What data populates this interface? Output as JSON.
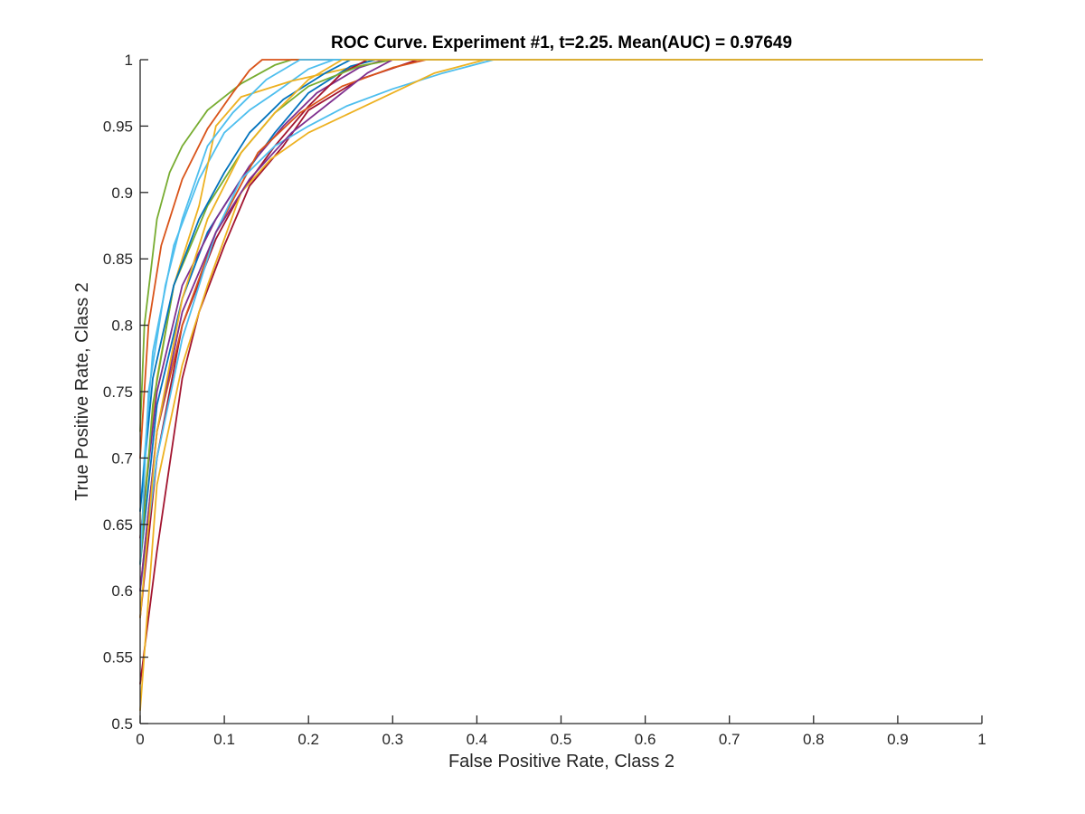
{
  "chart_data": {
    "type": "line",
    "title": "ROC Curve. Experiment #1, t=2.25. Mean(AUC) = 0.97649",
    "xlabel": "False Positive Rate, Class 2",
    "ylabel": "True Positive Rate, Class 2",
    "xlim": [
      0,
      1
    ],
    "ylim": [
      0.5,
      1
    ],
    "xticks": [
      0,
      0.1,
      0.2,
      0.3,
      0.4,
      0.5,
      0.6,
      0.7,
      0.8,
      0.9,
      1
    ],
    "xtick_labels": [
      "0",
      "0.1",
      "0.2",
      "0.3",
      "0.4",
      "0.5",
      "0.6",
      "0.7",
      "0.8",
      "0.9",
      "1"
    ],
    "yticks": [
      0.5,
      0.55,
      0.6,
      0.65,
      0.7,
      0.75,
      0.8,
      0.85,
      0.9,
      0.95,
      1
    ],
    "ytick_labels": [
      "0.5",
      "0.55",
      "0.6",
      "0.65",
      "0.7",
      "0.75",
      "0.8",
      "0.85",
      "0.9",
      "0.95",
      "1"
    ],
    "grid": false,
    "legend": "none",
    "series": [
      {
        "color": "#77AC30",
        "points": [
          [
            0,
            0.72
          ],
          [
            0.005,
            0.8
          ],
          [
            0.02,
            0.88
          ],
          [
            0.035,
            0.915
          ],
          [
            0.05,
            0.935
          ],
          [
            0.08,
            0.962
          ],
          [
            0.12,
            0.982
          ],
          [
            0.16,
            0.996
          ],
          [
            0.18,
            1
          ],
          [
            1,
            1
          ]
        ]
      },
      {
        "color": "#D95319",
        "points": [
          [
            0,
            0.7
          ],
          [
            0.01,
            0.8
          ],
          [
            0.025,
            0.86
          ],
          [
            0.05,
            0.91
          ],
          [
            0.08,
            0.948
          ],
          [
            0.11,
            0.975
          ],
          [
            0.13,
            0.992
          ],
          [
            0.145,
            1
          ],
          [
            1,
            1
          ]
        ]
      },
      {
        "color": "#4DBEEE",
        "points": [
          [
            0,
            0.66
          ],
          [
            0.015,
            0.78
          ],
          [
            0.04,
            0.86
          ],
          [
            0.07,
            0.91
          ],
          [
            0.1,
            0.945
          ],
          [
            0.13,
            0.962
          ],
          [
            0.16,
            0.975
          ],
          [
            0.2,
            0.993
          ],
          [
            0.23,
            1
          ],
          [
            1,
            1
          ]
        ]
      },
      {
        "color": "#EDB120",
        "points": [
          [
            0,
            0.64
          ],
          [
            0.02,
            0.76
          ],
          [
            0.04,
            0.83
          ],
          [
            0.07,
            0.89
          ],
          [
            0.09,
            0.95
          ],
          [
            0.12,
            0.972
          ],
          [
            0.18,
            0.984
          ],
          [
            0.25,
            0.994
          ],
          [
            0.3,
            1
          ],
          [
            1,
            1
          ]
        ]
      },
      {
        "color": "#0072BD",
        "points": [
          [
            0,
            0.62
          ],
          [
            0.02,
            0.74
          ],
          [
            0.05,
            0.82
          ],
          [
            0.08,
            0.87
          ],
          [
            0.12,
            0.91
          ],
          [
            0.16,
            0.945
          ],
          [
            0.2,
            0.975
          ],
          [
            0.25,
            0.995
          ],
          [
            0.28,
            1
          ],
          [
            1,
            1
          ]
        ]
      },
      {
        "color": "#7E2F8E",
        "points": [
          [
            0,
            0.64
          ],
          [
            0.02,
            0.75
          ],
          [
            0.05,
            0.83
          ],
          [
            0.09,
            0.88
          ],
          [
            0.13,
            0.92
          ],
          [
            0.17,
            0.95
          ],
          [
            0.21,
            0.975
          ],
          [
            0.26,
            0.994
          ],
          [
            0.29,
            1
          ],
          [
            1,
            1
          ]
        ]
      },
      {
        "color": "#A2142F",
        "points": [
          [
            0,
            0.53
          ],
          [
            0.02,
            0.63
          ],
          [
            0.05,
            0.76
          ],
          [
            0.07,
            0.81
          ],
          [
            0.1,
            0.86
          ],
          [
            0.13,
            0.905
          ],
          [
            0.17,
            0.935
          ],
          [
            0.2,
            0.962
          ],
          [
            0.26,
            0.985
          ],
          [
            0.33,
            1
          ],
          [
            1,
            1
          ]
        ]
      },
      {
        "color": "#A2142F",
        "points": [
          [
            0,
            0.58
          ],
          [
            0.02,
            0.7
          ],
          [
            0.05,
            0.8
          ],
          [
            0.09,
            0.865
          ],
          [
            0.12,
            0.9
          ],
          [
            0.16,
            0.935
          ],
          [
            0.2,
            0.965
          ],
          [
            0.24,
            0.99
          ],
          [
            0.27,
            1
          ],
          [
            1,
            1
          ]
        ]
      },
      {
        "color": "#77AC30",
        "points": [
          [
            0,
            0.62
          ],
          [
            0.015,
            0.74
          ],
          [
            0.04,
            0.83
          ],
          [
            0.08,
            0.89
          ],
          [
            0.12,
            0.93
          ],
          [
            0.16,
            0.96
          ],
          [
            0.2,
            0.98
          ],
          [
            0.26,
            0.995
          ],
          [
            0.3,
            1
          ],
          [
            1,
            1
          ]
        ]
      },
      {
        "color": "#D95319",
        "points": [
          [
            0,
            0.6
          ],
          [
            0.02,
            0.72
          ],
          [
            0.05,
            0.8
          ],
          [
            0.09,
            0.87
          ],
          [
            0.14,
            0.93
          ],
          [
            0.19,
            0.96
          ],
          [
            0.24,
            0.98
          ],
          [
            0.3,
            0.994
          ],
          [
            0.34,
            1
          ],
          [
            1,
            1
          ]
        ]
      },
      {
        "color": "#4DBEEE",
        "points": [
          [
            0,
            0.6
          ],
          [
            0.02,
            0.7
          ],
          [
            0.05,
            0.79
          ],
          [
            0.09,
            0.87
          ],
          [
            0.12,
            0.91
          ],
          [
            0.16,
            0.935
          ],
          [
            0.2,
            0.95
          ],
          [
            0.245,
            0.965
          ],
          [
            0.3,
            0.978
          ],
          [
            0.36,
            0.99
          ],
          [
            0.42,
            1
          ],
          [
            1,
            1
          ]
        ]
      },
      {
        "color": "#EDB120",
        "points": [
          [
            0,
            0.51
          ],
          [
            0.02,
            0.68
          ],
          [
            0.05,
            0.77
          ],
          [
            0.08,
            0.83
          ],
          [
            0.12,
            0.9
          ],
          [
            0.155,
            0.925
          ],
          [
            0.2,
            0.945
          ],
          [
            0.25,
            0.96
          ],
          [
            0.3,
            0.975
          ],
          [
            0.35,
            0.99
          ],
          [
            0.41,
            1
          ],
          [
            1,
            1
          ]
        ]
      },
      {
        "color": "#0072BD",
        "points": [
          [
            0,
            0.66
          ],
          [
            0.015,
            0.76
          ],
          [
            0.04,
            0.83
          ],
          [
            0.07,
            0.88
          ],
          [
            0.1,
            0.915
          ],
          [
            0.13,
            0.945
          ],
          [
            0.17,
            0.97
          ],
          [
            0.22,
            0.99
          ],
          [
            0.25,
            1
          ],
          [
            1,
            1
          ]
        ]
      },
      {
        "color": "#7E2F8E",
        "points": [
          [
            0,
            0.6
          ],
          [
            0.02,
            0.72
          ],
          [
            0.05,
            0.81
          ],
          [
            0.09,
            0.87
          ],
          [
            0.13,
            0.91
          ],
          [
            0.18,
            0.945
          ],
          [
            0.23,
            0.97
          ],
          [
            0.27,
            0.99
          ],
          [
            0.3,
            1
          ],
          [
            1,
            1
          ]
        ]
      },
      {
        "color": "#4DBEEE",
        "points": [
          [
            0,
            0.62
          ],
          [
            0.01,
            0.75
          ],
          [
            0.03,
            0.83
          ],
          [
            0.05,
            0.88
          ],
          [
            0.08,
            0.935
          ],
          [
            0.11,
            0.96
          ],
          [
            0.15,
            0.985
          ],
          [
            0.19,
            1
          ],
          [
            1,
            1
          ]
        ]
      },
      {
        "color": "#EDB120",
        "points": [
          [
            0,
            0.58
          ],
          [
            0.02,
            0.72
          ],
          [
            0.05,
            0.82
          ],
          [
            0.08,
            0.88
          ],
          [
            0.12,
            0.93
          ],
          [
            0.16,
            0.96
          ],
          [
            0.2,
            0.985
          ],
          [
            0.24,
            1
          ],
          [
            1,
            1
          ]
        ]
      }
    ]
  }
}
